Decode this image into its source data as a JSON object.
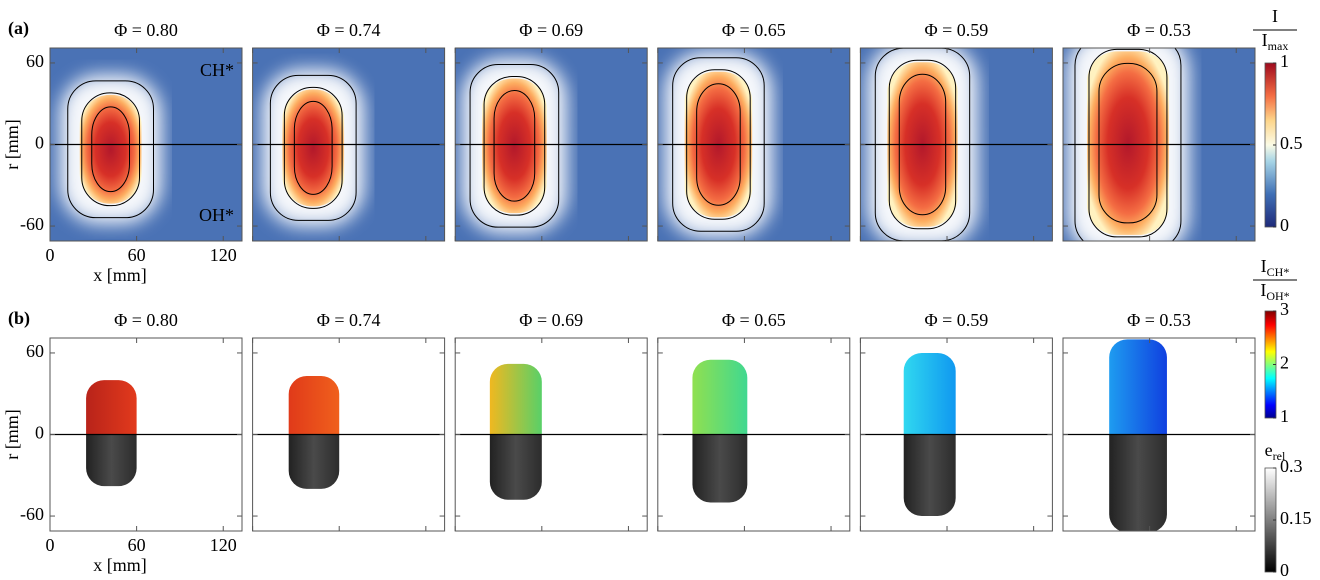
{
  "chart_data": [
    {
      "type": "heatmap",
      "label": "(a)",
      "titles": [
        "Φ = 0.80",
        "Φ = 0.74",
        "Φ = 0.69",
        "Φ = 0.65",
        "Φ = 0.59",
        "Φ = 0.53"
      ],
      "xlabel": "x [mm]",
      "ylabel": "r [mm]",
      "xlim": [
        0,
        133
      ],
      "ylim": [
        -71,
        71
      ],
      "xticks": [
        0,
        60,
        120
      ],
      "yticks": [
        -60,
        0,
        60
      ],
      "annotations": [
        "CH*",
        "OH*"
      ],
      "colorbars": [
        {
          "label": {
            "num": "I",
            "den": "I",
            "den_sub": "max"
          },
          "lim": [
            0,
            1
          ],
          "ticks": [
            0,
            0.5,
            1
          ],
          "colormap": "RdYlBu"
        }
      ]
    },
    {
      "type": "heatmap",
      "label": "(b)",
      "titles": [
        "Φ = 0.80",
        "Φ = 0.74",
        "Φ = 0.69",
        "Φ = 0.65",
        "Φ = 0.59",
        "Φ = 0.53"
      ],
      "xlabel": "x [mm]",
      "ylabel": "r [mm]",
      "xlim": [
        0,
        133
      ],
      "ylim": [
        -71,
        71
      ],
      "xticks": [
        0,
        60,
        120
      ],
      "yticks": [
        -60,
        0,
        60
      ],
      "colorbars": [
        {
          "label": {
            "num": "I",
            "num_sub": "CH*",
            "den": "I",
            "den_sub": "OH*"
          },
          "lim": [
            1,
            3
          ],
          "ticks": [
            1,
            2,
            3
          ],
          "colormap": "jet"
        },
        {
          "label": {
            "num": "e",
            "num_sub": "rel"
          },
          "lim": [
            0,
            0.3
          ],
          "ticks": [
            0,
            0.15,
            0.3
          ],
          "colormap": "gray"
        }
      ]
    }
  ]
}
